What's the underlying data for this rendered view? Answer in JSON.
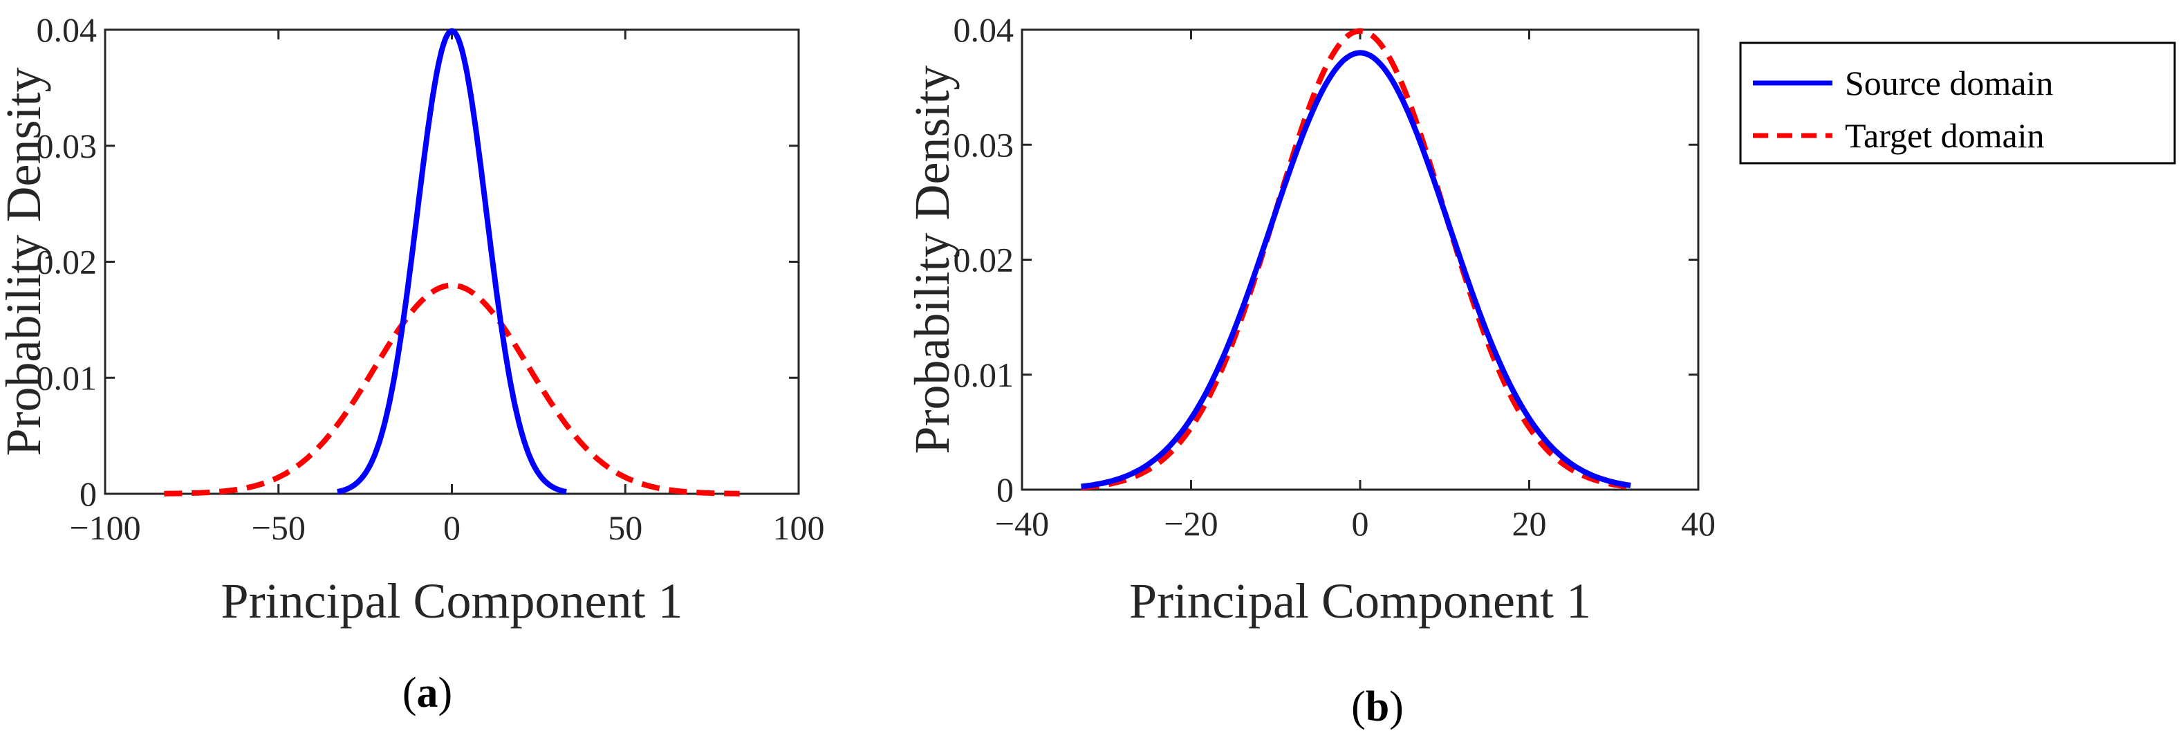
{
  "chart_data": [
    {
      "type": "line",
      "panel": "(a)",
      "xlabel": "Principal Component 1",
      "ylabel": "Probability Density",
      "xlim": [
        -100,
        100
      ],
      "ylim": [
        0,
        0.04
      ],
      "xticks": [
        -100,
        -50,
        0,
        50,
        100
      ],
      "xtick_labels": [
        "−100",
        "−50",
        "0",
        "50",
        "100"
      ],
      "yticks": [
        0,
        0.01,
        0.02,
        0.03,
        0.04
      ],
      "ytick_labels": [
        "0",
        "0.01",
        "0.02",
        "0.03",
        "0.04"
      ],
      "series": [
        {
          "name": "Source domain",
          "style": "solid",
          "color": "#0000ff",
          "distribution": "normal",
          "mean": 0,
          "std": 10,
          "x_range": [
            -33,
            33
          ]
        },
        {
          "name": "Target domain",
          "style": "dashed",
          "color": "#ff0000",
          "distribution": "normal",
          "mean": 0,
          "std": 22.2,
          "x_range": [
            -83,
            83
          ]
        }
      ]
    },
    {
      "type": "line",
      "panel": "(b)",
      "xlabel": "Principal Component 1",
      "ylabel": "Probability Density",
      "xlim": [
        -40,
        40
      ],
      "ylim": [
        0,
        0.04
      ],
      "xticks": [
        -40,
        -20,
        0,
        20,
        40
      ],
      "xtick_labels": [
        "−40",
        "−20",
        "0",
        "20",
        "40"
      ],
      "yticks": [
        0,
        0.01,
        0.02,
        0.03,
        0.04
      ],
      "ytick_labels": [
        "0",
        "0.01",
        "0.02",
        "0.03",
        "0.04"
      ],
      "series": [
        {
          "name": "Source domain",
          "style": "solid",
          "color": "#0000ff",
          "distribution": "normal",
          "mean": 0,
          "std": 10.5,
          "x_range": [
            -33,
            32
          ]
        },
        {
          "name": "Target domain",
          "style": "dashed",
          "color": "#ff0000",
          "distribution": "normal",
          "mean": 0,
          "std": 10,
          "x_range": [
            -33,
            32
          ]
        }
      ]
    }
  ],
  "legend": {
    "placement": "right",
    "entries": [
      {
        "label": "Source domain",
        "style": "solid",
        "color": "#0000ff"
      },
      {
        "label": "Target domain",
        "style": "dashed",
        "color": "#ff0000"
      }
    ]
  },
  "panel_labels": {
    "a": {
      "open": "(",
      "letter": "a",
      "close": ")"
    },
    "b": {
      "open": "(",
      "letter": "b",
      "close": ")"
    }
  }
}
